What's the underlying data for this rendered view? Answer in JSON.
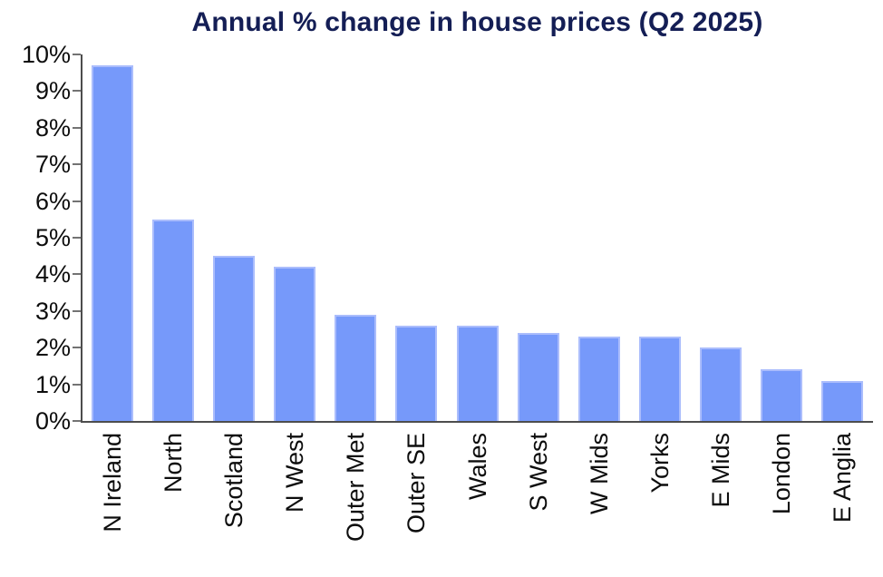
{
  "chart_data": {
    "type": "bar",
    "title": "Annual % change in house prices (Q2 2025)",
    "categories": [
      "N Ireland",
      "North",
      "Scotland",
      "N West",
      "Outer Met",
      "Outer SE",
      "Wales",
      "S West",
      "W Mids",
      "Yorks",
      "E Mids",
      "London",
      "E Anglia"
    ],
    "values": [
      9.7,
      5.5,
      4.5,
      4.2,
      2.9,
      2.6,
      2.6,
      2.4,
      2.3,
      2.3,
      2.0,
      1.4,
      1.1
    ],
    "xlabel": "",
    "ylabel": "",
    "ylim": [
      0,
      10
    ],
    "y_tick_labels": [
      "0%",
      "1%",
      "2%",
      "3%",
      "4%",
      "5%",
      "6%",
      "7%",
      "8%",
      "9%",
      "10%"
    ],
    "grid": false,
    "legend": false,
    "colors": {
      "bar_fill": "#7699fa",
      "bar_edge": "#abbdfc",
      "axis": "#4d4d4d",
      "tick_mark": "#737373",
      "title_text": "#141e55",
      "tick_label_text": "#0d0d0d",
      "background": "#ffffff"
    }
  }
}
